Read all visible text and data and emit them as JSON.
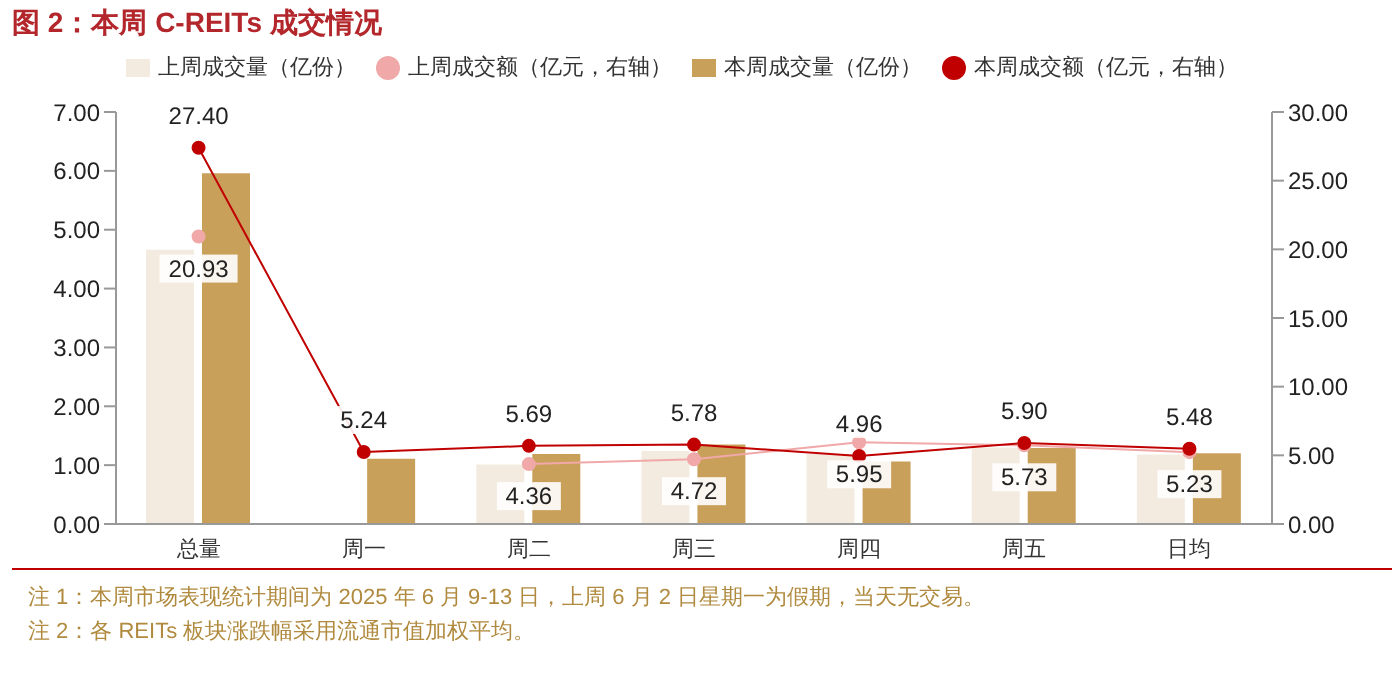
{
  "chart_data": {
    "type": "bar",
    "title": "图 2：本周 C-REITs 成交情况",
    "categories": [
      "总量",
      "周一",
      "周二",
      "周三",
      "周四",
      "周五",
      "日均"
    ],
    "series": [
      {
        "name": "上周成交量（亿份）",
        "color": "#f3ebdf",
        "values": [
          4.66,
          null,
          1.01,
          1.24,
          1.19,
          1.3,
          1.18
        ]
      },
      {
        "name": "本周成交量（亿份）",
        "color": "#c9a05a",
        "values": [
          5.96,
          1.11,
          1.19,
          1.35,
          1.06,
          1.29,
          1.2
        ]
      },
      {
        "name": "上周成交额（亿元，右轴）",
        "type": "line",
        "axis": "y2",
        "color": "#f0a8a8",
        "values": [
          20.93,
          null,
          4.36,
          4.72,
          5.95,
          5.73,
          5.23
        ],
        "value_labels": [
          "20.93",
          null,
          "4.36",
          "4.72",
          "5.95",
          "5.73",
          "5.23"
        ]
      },
      {
        "name": "本周成交额（亿元，右轴）",
        "type": "line",
        "axis": "y2",
        "color": "#c00000",
        "values": [
          27.4,
          5.24,
          5.69,
          5.78,
          4.96,
          5.9,
          5.48
        ],
        "value_labels": [
          "27.40",
          "5.24",
          "5.69",
          "5.78",
          "4.96",
          "5.90",
          "5.48"
        ]
      }
    ],
    "ylim": [
      0,
      7
    ],
    "yticks": [
      {
        "value": 0,
        "label": "0.00"
      },
      {
        "value": 1,
        "label": "1.00"
      },
      {
        "value": 2,
        "label": "2.00"
      },
      {
        "value": 3,
        "label": "3.00"
      },
      {
        "value": 4,
        "label": "4.00"
      },
      {
        "value": 5,
        "label": "5.00"
      },
      {
        "value": 6,
        "label": "6.00"
      },
      {
        "value": 7,
        "label": "7.00"
      }
    ],
    "y2lim": [
      0,
      30
    ],
    "y2ticks": [
      {
        "value": 0,
        "label": "0.00"
      },
      {
        "value": 5,
        "label": "5.00"
      },
      {
        "value": 10,
        "label": "10.00"
      },
      {
        "value": 15,
        "label": "15.00"
      },
      {
        "value": 20,
        "label": "20.00"
      },
      {
        "value": 25,
        "label": "25.00"
      },
      {
        "value": 30,
        "label": "30.00"
      }
    ],
    "grid": false,
    "legend": "top",
    "marker": "circle",
    "annotations": [
      "注 1：本周市场表现统计期间为 2025 年 6 月 9-13 日，上周 6 月 2 日星期一为假期，当天无交易。",
      "注 2：各 REITs 板块涨跌幅采用流通市值加权平均。"
    ]
  }
}
